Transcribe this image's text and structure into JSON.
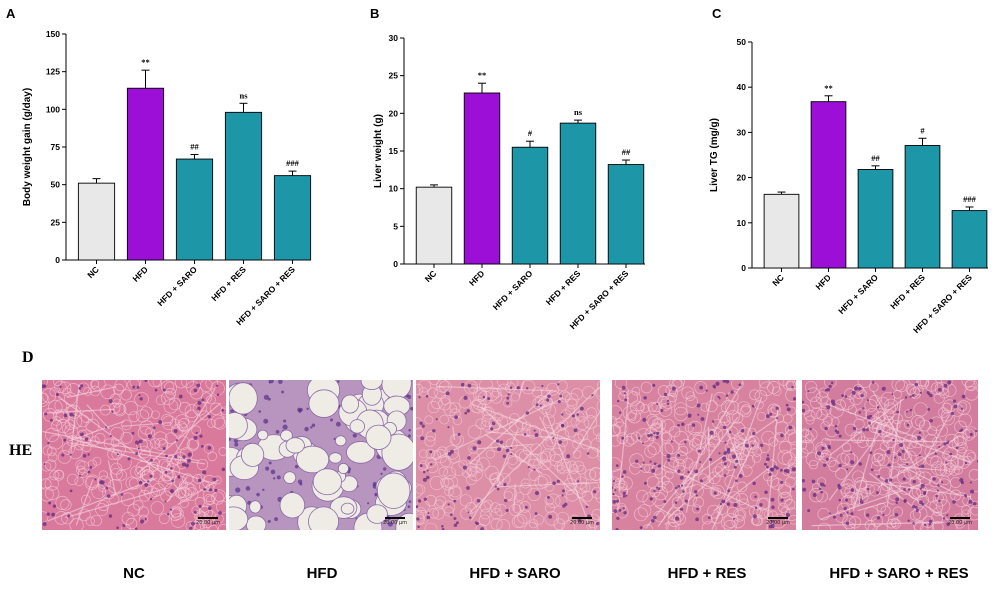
{
  "colors": {
    "nc": "#e8e8e8",
    "hfd": "#9c0fd6",
    "treat": "#1d97a8",
    "axis": "#000000"
  },
  "chart_data": [
    {
      "panel": "A",
      "type": "bar",
      "ylabel": "Body weight gain (g/day)",
      "ylim": [
        0,
        150
      ],
      "yticks": [
        0,
        25,
        50,
        75,
        100,
        125,
        150
      ],
      "categories": [
        "NC",
        "HFD",
        "HFD + SARO",
        "HFD + RES",
        "HFD + SARO + RES"
      ],
      "values": [
        51,
        114,
        67,
        98,
        56
      ],
      "errors": [
        3,
        12,
        3,
        6,
        3
      ],
      "significance": [
        "",
        "**",
        "##",
        "ns",
        "###"
      ],
      "bar_colors": [
        "nc",
        "hfd",
        "treat",
        "treat",
        "treat"
      ]
    },
    {
      "panel": "B",
      "type": "bar",
      "ylabel": "Liver weight (g)",
      "ylim": [
        0,
        30
      ],
      "yticks": [
        0,
        5,
        10,
        15,
        20,
        25,
        30
      ],
      "categories": [
        "NC",
        "HFD",
        "HFD + SARO",
        "HFD + RES",
        "HFD + SARO + RES"
      ],
      "values": [
        10.2,
        22.7,
        15.5,
        18.7,
        13.2
      ],
      "errors": [
        0.3,
        1.3,
        0.8,
        0.4,
        0.6
      ],
      "significance": [
        "",
        "**",
        "#",
        "ns",
        "##"
      ],
      "bar_colors": [
        "nc",
        "hfd",
        "treat",
        "treat",
        "treat"
      ]
    },
    {
      "panel": "C",
      "type": "bar",
      "ylabel": "Liver TG (mg/g)",
      "ylim": [
        0,
        50
      ],
      "yticks": [
        0,
        10,
        20,
        30,
        40,
        50
      ],
      "categories": [
        "NC",
        "HFD",
        "HFD + SARO",
        "HFD + RES",
        "HFD + SARO + RES"
      ],
      "values": [
        16.3,
        36.8,
        21.8,
        27.1,
        12.7
      ],
      "errors": [
        0.5,
        1.3,
        0.8,
        1.6,
        0.8
      ],
      "significance": [
        "",
        "**",
        "##",
        "#",
        "###"
      ],
      "bar_colors": [
        "nc",
        "hfd",
        "treat",
        "treat",
        "treat"
      ]
    }
  ],
  "histology": {
    "panel_letter": "D",
    "stain_label": "HE",
    "scale_text": "20.00 μm",
    "groups": [
      "NC",
      "HFD",
      "HFD + SARO",
      "HFD + RES",
      "HFD + SARO + RES"
    ]
  }
}
